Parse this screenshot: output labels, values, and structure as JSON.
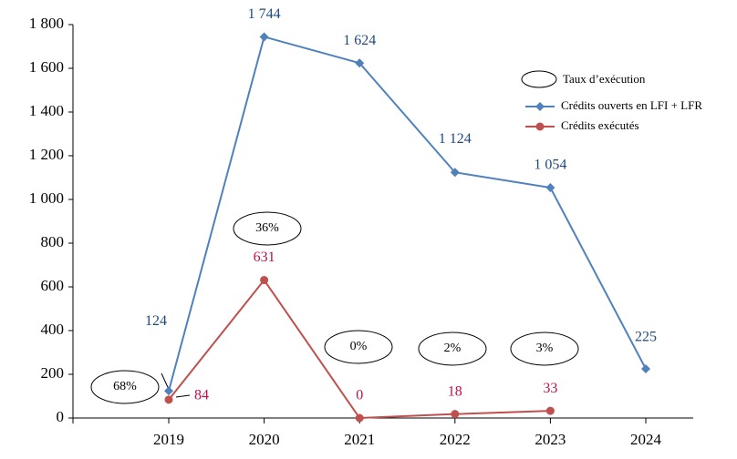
{
  "chart_data": {
    "type": "line",
    "categories": [
      "2019",
      "2020",
      "2021",
      "2022",
      "2023",
      "2024"
    ],
    "series": [
      {
        "name": "Crédits ouverts en LFI + LFR",
        "color": "#4f81bd",
        "marker": "diamond",
        "values": [
          124,
          1744,
          1624,
          1124,
          1054,
          225
        ],
        "value_labels": [
          "124",
          "1 744",
          "1 624",
          "1 124",
          "1 054",
          "225"
        ]
      },
      {
        "name": "Crédits exécutés",
        "color": "#c0504d",
        "marker": "circle",
        "values": [
          84,
          631,
          0,
          18,
          33,
          null
        ]
      }
    ],
    "annotations_legend": "Taux d’exécution",
    "annotations": [
      "68%",
      "36%",
      "0%",
      "2%",
      "3%"
    ],
    "ylim": [
      0,
      1800
    ],
    "yticks": [
      0,
      200,
      400,
      600,
      800,
      {
        "value": 1000,
        "label": "1 000"
      },
      {
        "value": 1200,
        "label": "1 200"
      },
      {
        "value": 1400,
        "label": "1 400"
      },
      {
        "value": 1600,
        "label": "1 600"
      },
      {
        "value": 1800,
        "label": "1 800"
      }
    ]
  }
}
